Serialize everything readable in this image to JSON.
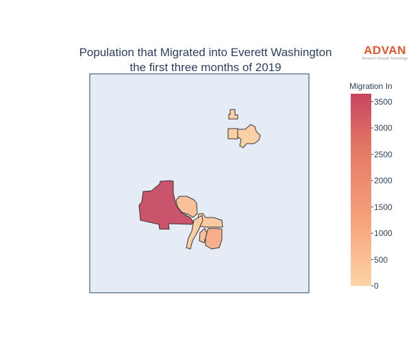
{
  "title_line1": "Population that Migrated into Everett Washington",
  "title_line2": "the first three months of 2019",
  "logo": {
    "name": "ADVAN",
    "tagline": "Research through Technology"
  },
  "colorbar": {
    "title": "Migration In",
    "ticks": [
      3500,
      3000,
      2500,
      2000,
      1500,
      1000,
      500,
      0
    ],
    "range": [
      0,
      3650
    ],
    "colors": [
      "#fdd4a4",
      "#f6a17b",
      "#e47b66",
      "#c7445f"
    ]
  },
  "colors": {
    "map_background": "#e5ecf6",
    "border": "#2a3f5f",
    "region_outline": "#333333"
  },
  "chart_data": {
    "type": "choropleth",
    "title": "Population that Migrated into Everett Washington the first three months of 2019",
    "colorbar_title": "Migration In",
    "regions": [
      {
        "id": "north-small",
        "value": 200
      },
      {
        "id": "north-east",
        "value": 150
      },
      {
        "id": "north-square",
        "value": 180
      },
      {
        "id": "west-large",
        "value": 3600
      },
      {
        "id": "central",
        "value": 550
      },
      {
        "id": "central-east",
        "value": 300
      },
      {
        "id": "south-strip",
        "value": 200
      },
      {
        "id": "south-east",
        "value": 1050
      },
      {
        "id": "south-small",
        "value": 600
      }
    ]
  }
}
